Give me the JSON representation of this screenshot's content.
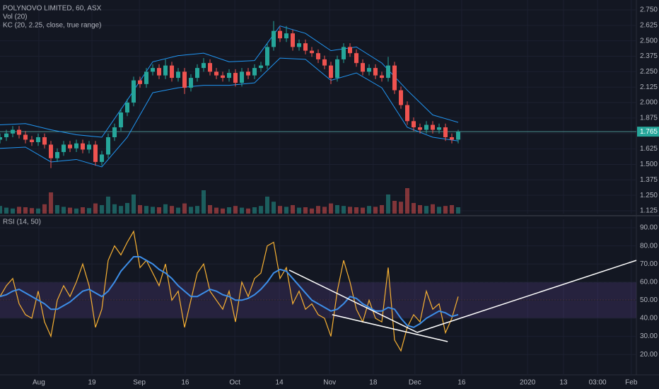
{
  "chart_data": [
    {
      "type": "candlestick",
      "title": "POLYNOVO LIMITED, 60, ASX",
      "indicators": [
        "Vol (20)",
        "KC (20, 2.25, close, true range)"
      ],
      "up_color": "#26a69a",
      "down_color": "#ef5350",
      "x": [
        0,
        2,
        4,
        6,
        8,
        10,
        12,
        14,
        16,
        18,
        20,
        22,
        24,
        26,
        28,
        30,
        32,
        34,
        36,
        38,
        40,
        42,
        44,
        46,
        48,
        50,
        52,
        54,
        56,
        58,
        60,
        62,
        64,
        66,
        68,
        70,
        72,
        74,
        76,
        78,
        80,
        82,
        84,
        86,
        88,
        90,
        92,
        94,
        96,
        98,
        100,
        102,
        104,
        106,
        108,
        110,
        112,
        114,
        116,
        118,
        120,
        122,
        124,
        126,
        128,
        130,
        132,
        134,
        136,
        138,
        140,
        142,
        144
      ],
      "open": [
        1.7,
        1.72,
        1.75,
        1.78,
        1.74,
        1.7,
        1.68,
        1.72,
        1.66,
        1.55,
        1.6,
        1.66,
        1.63,
        1.67,
        1.62,
        1.66,
        1.52,
        1.58,
        1.72,
        1.8,
        1.92,
        2.0,
        2.18,
        2.15,
        2.25,
        2.28,
        2.22,
        2.3,
        2.2,
        2.25,
        2.12,
        2.2,
        2.28,
        2.32,
        2.25,
        2.22,
        2.2,
        2.24,
        2.16,
        2.25,
        2.22,
        2.28,
        2.3,
        2.45,
        2.58,
        2.52,
        2.56,
        2.45,
        2.48,
        2.42,
        2.4,
        2.35,
        2.3,
        2.2,
        2.35,
        2.45,
        2.4,
        2.32,
        2.25,
        2.28,
        2.22,
        2.2,
        2.3,
        2.1,
        1.98,
        1.85,
        1.8,
        1.78,
        1.82,
        1.78,
        1.8,
        1.72,
        1.7
      ],
      "high": [
        1.75,
        1.78,
        1.81,
        1.81,
        1.77,
        1.73,
        1.75,
        1.75,
        1.69,
        1.63,
        1.69,
        1.69,
        1.7,
        1.7,
        1.69,
        1.69,
        1.61,
        1.75,
        1.83,
        1.95,
        2.03,
        2.21,
        2.21,
        2.28,
        2.31,
        2.31,
        2.35,
        2.33,
        2.28,
        2.28,
        2.23,
        2.31,
        2.36,
        2.35,
        2.28,
        2.25,
        2.27,
        2.27,
        2.28,
        2.28,
        2.31,
        2.33,
        2.48,
        2.66,
        2.61,
        2.62,
        2.59,
        2.51,
        2.51,
        2.45,
        2.43,
        2.38,
        2.33,
        2.38,
        2.48,
        2.48,
        2.43,
        2.35,
        2.31,
        2.31,
        2.25,
        2.37,
        2.33,
        2.13,
        2.01,
        1.88,
        1.83,
        1.85,
        1.85,
        1.83,
        1.83,
        1.75,
        1.78
      ],
      "low": [
        1.67,
        1.69,
        1.72,
        1.71,
        1.67,
        1.65,
        1.65,
        1.63,
        1.47,
        1.52,
        1.57,
        1.6,
        1.6,
        1.59,
        1.59,
        1.49,
        1.49,
        1.55,
        1.69,
        1.77,
        1.89,
        1.97,
        2.12,
        2.12,
        2.22,
        2.19,
        2.19,
        2.17,
        2.17,
        2.07,
        2.09,
        2.17,
        2.25,
        2.22,
        2.19,
        2.17,
        2.17,
        2.13,
        2.13,
        2.19,
        2.19,
        2.25,
        2.27,
        2.42,
        2.49,
        2.49,
        2.42,
        2.42,
        2.39,
        2.37,
        2.32,
        2.27,
        2.15,
        2.17,
        2.32,
        2.37,
        2.29,
        2.22,
        2.22,
        2.19,
        2.17,
        2.17,
        2.07,
        1.95,
        1.82,
        1.77,
        1.75,
        1.75,
        1.75,
        1.75,
        1.69,
        1.67,
        1.67
      ],
      "close": [
        1.72,
        1.75,
        1.78,
        1.74,
        1.7,
        1.68,
        1.72,
        1.66,
        1.55,
        1.6,
        1.66,
        1.63,
        1.67,
        1.62,
        1.66,
        1.52,
        1.58,
        1.72,
        1.8,
        1.92,
        2.0,
        2.18,
        2.15,
        2.25,
        2.28,
        2.22,
        2.3,
        2.2,
        2.25,
        2.12,
        2.2,
        2.28,
        2.32,
        2.25,
        2.22,
        2.2,
        2.24,
        2.16,
        2.25,
        2.22,
        2.28,
        2.3,
        2.45,
        2.58,
        2.52,
        2.56,
        2.45,
        2.48,
        2.42,
        2.4,
        2.35,
        2.3,
        2.2,
        2.35,
        2.45,
        2.4,
        2.32,
        2.25,
        2.28,
        2.22,
        2.2,
        2.3,
        2.1,
        1.98,
        1.85,
        1.8,
        1.78,
        1.82,
        1.78,
        1.8,
        1.72,
        1.7,
        1.765
      ],
      "volume": [
        18,
        14,
        12,
        16,
        15,
        13,
        12,
        22,
        50,
        20,
        16,
        14,
        12,
        15,
        13,
        24,
        20,
        40,
        22,
        18,
        25,
        45,
        20,
        18,
        16,
        15,
        22,
        18,
        14,
        24,
        16,
        18,
        55,
        20,
        14,
        12,
        15,
        18,
        14,
        12,
        15,
        18,
        40,
        28,
        18,
        16,
        20,
        14,
        15,
        12,
        18,
        16,
        24,
        20,
        18,
        16,
        15,
        14,
        18,
        16,
        20,
        45,
        30,
        28,
        60,
        25,
        20,
        18,
        22,
        16,
        18,
        20,
        15
      ],
      "vol_ylim": [
        0,
        100
      ],
      "series": [
        {
          "color": "#2196f3",
          "x": [
            0,
            8,
            16,
            24,
            32,
            40,
            48,
            56,
            64,
            72,
            80,
            88,
            96,
            104,
            112,
            120,
            128,
            136,
            144
          ],
          "values": [
            1.82,
            1.83,
            1.78,
            1.74,
            1.72,
            2.02,
            2.33,
            2.38,
            2.4,
            2.33,
            2.34,
            2.62,
            2.56,
            2.42,
            2.45,
            2.32,
            2.1,
            1.9,
            1.84
          ]
        },
        {
          "color": "#2196f3",
          "x": [
            0,
            8,
            16,
            24,
            32,
            40,
            48,
            56,
            64,
            72,
            80,
            88,
            96,
            104,
            112,
            120,
            128,
            136,
            144
          ],
          "values": [
            1.63,
            1.64,
            1.52,
            1.54,
            1.48,
            1.72,
            2.08,
            2.12,
            2.14,
            2.14,
            2.16,
            2.36,
            2.35,
            2.18,
            2.24,
            2.12,
            1.8,
            1.72,
            1.69
          ]
        }
      ],
      "last_price": {
        "value": 1.765,
        "label": "1.765"
      },
      "xlim": [
        0,
        200
      ],
      "ylim": [
        1.102,
        2.83
      ],
      "yticks": [
        {
          "value": 1.125,
          "label": "1.125"
        },
        {
          "value": 1.25,
          "label": "1.250"
        },
        {
          "value": 1.375,
          "label": "1.375"
        },
        {
          "value": 1.5,
          "label": "1.500"
        },
        {
          "value": 1.625,
          "label": "1.625"
        },
        {
          "value": 1.75,
          "label": "1.750"
        },
        {
          "value": 1.875,
          "label": "1.875"
        },
        {
          "value": 2.0,
          "label": "2.000"
        },
        {
          "value": 2.125,
          "label": "2.125"
        },
        {
          "value": 2.25,
          "label": "2.250"
        },
        {
          "value": 2.375,
          "label": "2.375"
        },
        {
          "value": 2.5,
          "label": "2.500"
        },
        {
          "value": 2.625,
          "label": "2.625"
        },
        {
          "value": 2.75,
          "label": "2.750"
        }
      ],
      "grid": true
    },
    {
      "type": "line",
      "title": "RSI (14, 50)",
      "x": [
        0,
        2,
        4,
        6,
        8,
        10,
        12,
        14,
        16,
        18,
        20,
        22,
        24,
        26,
        28,
        30,
        32,
        34,
        36,
        38,
        40,
        42,
        44,
        46,
        48,
        50,
        52,
        54,
        56,
        58,
        60,
        62,
        64,
        66,
        68,
        70,
        72,
        74,
        76,
        78,
        80,
        82,
        84,
        86,
        88,
        90,
        92,
        94,
        96,
        98,
        100,
        102,
        104,
        106,
        108,
        110,
        112,
        114,
        116,
        118,
        120,
        122,
        124,
        126,
        128,
        130,
        132,
        134,
        136,
        138,
        140,
        142,
        144
      ],
      "series": [
        {
          "color": "#f9b233",
          "values": [
            52,
            58,
            62,
            48,
            42,
            40,
            55,
            38,
            30,
            50,
            58,
            52,
            60,
            70,
            58,
            35,
            45,
            72,
            80,
            75,
            82,
            88,
            68,
            72,
            65,
            58,
            70,
            50,
            55,
            35,
            50,
            65,
            70,
            55,
            50,
            45,
            55,
            38,
            60,
            52,
            62,
            65,
            80,
            82,
            62,
            68,
            48,
            55,
            45,
            48,
            42,
            40,
            30,
            55,
            72,
            60,
            45,
            38,
            50,
            40,
            38,
            68,
            28,
            22,
            35,
            42,
            38,
            55,
            45,
            48,
            32,
            40,
            52
          ]
        },
        {
          "color": "#3d8ee8",
          "values": [
            52,
            53,
            55,
            56,
            54,
            52,
            50,
            48,
            45,
            45,
            47,
            49,
            52,
            55,
            56,
            54,
            52,
            55,
            60,
            66,
            70,
            74,
            74,
            72,
            70,
            67,
            65,
            62,
            58,
            55,
            52,
            52,
            54,
            56,
            55,
            53,
            52,
            50,
            50,
            51,
            53,
            56,
            60,
            65,
            67,
            66,
            62,
            58,
            54,
            50,
            48,
            46,
            44,
            45,
            48,
            52,
            51,
            48,
            46,
            44,
            44,
            46,
            45,
            40,
            36,
            35,
            37,
            40,
            42,
            44,
            43,
            41,
            42
          ]
        }
      ],
      "band": [
        40,
        60
      ],
      "band_color": "#7e57c2",
      "midline": 50,
      "trendlines": [
        {
          "x": [
            90.9,
            131.1
          ],
          "y": [
            66.6,
            32.2
          ]
        },
        {
          "x": [
            104.4,
            140.7
          ],
          "y": [
            42.0,
            27.1
          ]
        },
        {
          "x": [
            131.1,
            200
          ],
          "y": [
            32.2,
            72.0
          ]
        }
      ],
      "xlim": [
        0,
        200
      ],
      "ylim": [
        8.75,
        94.7
      ],
      "yticks": [
        {
          "value": 20,
          "label": "20.00"
        },
        {
          "value": 30,
          "label": "30.00"
        },
        {
          "value": 40,
          "label": "40.00"
        },
        {
          "value": 50,
          "label": "50.00"
        },
        {
          "value": 60,
          "label": "60.00"
        },
        {
          "value": 70,
          "label": "70.00"
        },
        {
          "value": 80,
          "label": "80.00"
        },
        {
          "value": 90,
          "label": "90.00"
        }
      ],
      "xticks": [
        {
          "value": 12.2,
          "label": "Aug"
        },
        {
          "value": 28.9,
          "label": "19"
        },
        {
          "value": 43.8,
          "label": "Sep"
        },
        {
          "value": 58.2,
          "label": "16"
        },
        {
          "value": 73.8,
          "label": "Oct"
        },
        {
          "value": 87.8,
          "label": "14"
        },
        {
          "value": 103.6,
          "label": "Nov"
        },
        {
          "value": 117.3,
          "label": "18"
        },
        {
          "value": 130.4,
          "label": "Dec"
        },
        {
          "value": 145.1,
          "label": "16"
        },
        {
          "value": 165.8,
          "label": "2020"
        },
        {
          "value": 177.1,
          "label": "13"
        },
        {
          "value": 187.8,
          "label": "03:00"
        },
        {
          "value": 198.4,
          "label": "Feb"
        }
      ],
      "grid": true
    }
  ]
}
